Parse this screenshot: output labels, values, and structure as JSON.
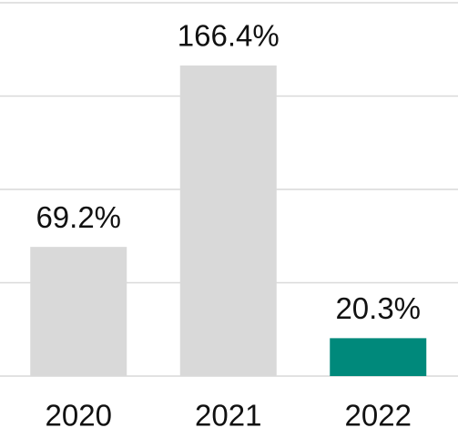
{
  "chart_data": {
    "type": "bar",
    "categories": [
      "2020",
      "2021",
      "2022"
    ],
    "values": [
      69.2,
      166.4,
      20.3
    ],
    "value_labels": [
      "69.2%",
      "166.4%",
      "20.3%"
    ],
    "colors": [
      "#d9d9d9",
      "#d9d9d9",
      "#00897b"
    ],
    "ylim": [
      0,
      200
    ],
    "yticks": [
      0,
      50,
      100,
      150,
      200
    ],
    "grid": true
  }
}
